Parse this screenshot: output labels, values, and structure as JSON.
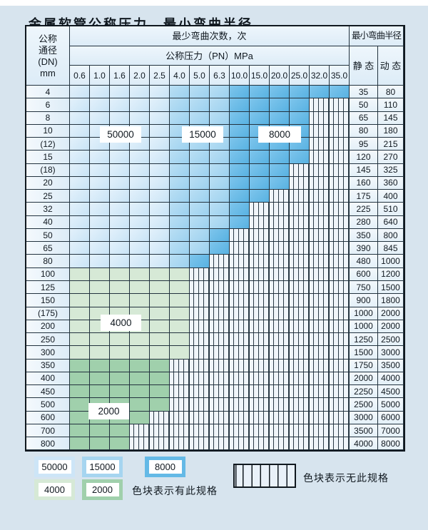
{
  "title": "金属软管公称压力、最小弯曲半径",
  "table": {
    "dn_header_lines": [
      "公称",
      "通径",
      "(DN)",
      "mm"
    ],
    "cycles_header": "最少弯曲次数，次",
    "pressure_header": "公称压力（PN）MPa",
    "pressure_columns": [
      "0.6",
      "1.0",
      "1.6",
      "2.0",
      "2.5",
      "4.0",
      "5.0",
      "6.3",
      "10.0",
      "15.0",
      "20.0",
      "25.0",
      "32.0",
      "35.0"
    ],
    "radius_header": "最小弯曲半径",
    "static_header": "静 态",
    "dynamic_header": "动 态",
    "cell_legend": {
      "b1": "50000次",
      "b2": "15000次",
      "b3": "8000次",
      "g1": "4000次",
      "g2": "2000次",
      "x": "无此规格"
    },
    "rows": [
      {
        "dn": "4",
        "cells": [
          "b1",
          "b1",
          "b1",
          "b1",
          "b1",
          "b2",
          "b2",
          "b2",
          "b3",
          "b3",
          "b3",
          "b3",
          "b3",
          "b3"
        ],
        "static": "35",
        "dynamic": "80"
      },
      {
        "dn": "6",
        "cells": [
          "b1",
          "b1",
          "b1",
          "b1",
          "b1",
          "b2",
          "b2",
          "b2",
          "b3",
          "b3",
          "b3",
          "b3",
          "x",
          "x"
        ],
        "static": "50",
        "dynamic": "110"
      },
      {
        "dn": "8",
        "cells": [
          "b1",
          "b1",
          "b1",
          "b1",
          "b1",
          "b2",
          "b2",
          "b2",
          "b3",
          "b3",
          "b3",
          "b3",
          "x",
          "x"
        ],
        "static": "65",
        "dynamic": "145"
      },
      {
        "dn": "10",
        "cells": [
          "b1",
          "b1",
          "b1",
          "b1",
          "b1",
          "b2",
          "b2",
          "b2",
          "b3",
          "b3",
          "b3",
          "b3",
          "x",
          "x"
        ],
        "static": "80",
        "dynamic": "180"
      },
      {
        "dn": "(12)",
        "cells": [
          "b1",
          "b1",
          "b1",
          "b1",
          "b1",
          "b2",
          "b2",
          "b2",
          "b3",
          "b3",
          "b3",
          "b3",
          "x",
          "x"
        ],
        "static": "95",
        "dynamic": "215"
      },
      {
        "dn": "15",
        "cells": [
          "b1",
          "b1",
          "b1",
          "b1",
          "b1",
          "b2",
          "b2",
          "b2",
          "b3",
          "b3",
          "b3",
          "b3",
          "x",
          "x"
        ],
        "static": "120",
        "dynamic": "270"
      },
      {
        "dn": "(18)",
        "cells": [
          "b1",
          "b1",
          "b1",
          "b1",
          "b1",
          "b2",
          "b2",
          "b2",
          "b3",
          "b3",
          "b3",
          "x",
          "x",
          "x"
        ],
        "static": "145",
        "dynamic": "325"
      },
      {
        "dn": "20",
        "cells": [
          "b1",
          "b1",
          "b1",
          "b1",
          "b1",
          "b2",
          "b2",
          "b2",
          "b3",
          "b3",
          "b3",
          "x",
          "x",
          "x"
        ],
        "static": "160",
        "dynamic": "360"
      },
      {
        "dn": "25",
        "cells": [
          "b1",
          "b1",
          "b1",
          "b1",
          "b1",
          "b2",
          "b2",
          "b2",
          "b3",
          "b3",
          "x",
          "x",
          "x",
          "x"
        ],
        "static": "175",
        "dynamic": "400"
      },
      {
        "dn": "32",
        "cells": [
          "b1",
          "b1",
          "b1",
          "b1",
          "b1",
          "b2",
          "b2",
          "b2",
          "b3",
          "x",
          "x",
          "x",
          "x",
          "x"
        ],
        "static": "225",
        "dynamic": "510"
      },
      {
        "dn": "40",
        "cells": [
          "b1",
          "b1",
          "b1",
          "b1",
          "b1",
          "b2",
          "b2",
          "b2",
          "b3",
          "x",
          "x",
          "x",
          "x",
          "x"
        ],
        "static": "280",
        "dynamic": "640"
      },
      {
        "dn": "50",
        "cells": [
          "b1",
          "b1",
          "b1",
          "b1",
          "b1",
          "b2",
          "b2",
          "b3",
          "x",
          "x",
          "x",
          "x",
          "x",
          "x"
        ],
        "static": "350",
        "dynamic": "800"
      },
      {
        "dn": "65",
        "cells": [
          "b1",
          "b1",
          "b1",
          "b1",
          "b1",
          "b2",
          "b2",
          "b3",
          "x",
          "x",
          "x",
          "x",
          "x",
          "x"
        ],
        "static": "390",
        "dynamic": "845"
      },
      {
        "dn": "80",
        "cells": [
          "b1",
          "b1",
          "b1",
          "b1",
          "b1",
          "b2",
          "b3",
          "x",
          "x",
          "x",
          "x",
          "x",
          "x",
          "x"
        ],
        "static": "480",
        "dynamic": "1000"
      },
      {
        "dn": "100",
        "cells": [
          "g1",
          "g1",
          "g1",
          "g1",
          "g1",
          "g1",
          "x",
          "x",
          "x",
          "x",
          "x",
          "x",
          "x",
          "x"
        ],
        "static": "600",
        "dynamic": "1200"
      },
      {
        "dn": "125",
        "cells": [
          "g1",
          "g1",
          "g1",
          "g1",
          "g1",
          "g1",
          "x",
          "x",
          "x",
          "x",
          "x",
          "x",
          "x",
          "x"
        ],
        "static": "750",
        "dynamic": "1500"
      },
      {
        "dn": "150",
        "cells": [
          "g1",
          "g1",
          "g1",
          "g1",
          "g1",
          "g1",
          "x",
          "x",
          "x",
          "x",
          "x",
          "x",
          "x",
          "x"
        ],
        "static": "900",
        "dynamic": "1800"
      },
      {
        "dn": "(175)",
        "cells": [
          "g1",
          "g1",
          "g1",
          "g1",
          "g1",
          "g1",
          "x",
          "x",
          "x",
          "x",
          "x",
          "x",
          "x",
          "x"
        ],
        "static": "1000",
        "dynamic": "2000"
      },
      {
        "dn": "200",
        "cells": [
          "g1",
          "g1",
          "g1",
          "g1",
          "g1",
          "g1",
          "x",
          "x",
          "x",
          "x",
          "x",
          "x",
          "x",
          "x"
        ],
        "static": "1000",
        "dynamic": "2000"
      },
      {
        "dn": "250",
        "cells": [
          "g1",
          "g1",
          "g1",
          "g1",
          "g1",
          "g1",
          "x",
          "x",
          "x",
          "x",
          "x",
          "x",
          "x",
          "x"
        ],
        "static": "1250",
        "dynamic": "2500"
      },
      {
        "dn": "300",
        "cells": [
          "g1",
          "g1",
          "g1",
          "g1",
          "g1",
          "g1",
          "x",
          "x",
          "x",
          "x",
          "x",
          "x",
          "x",
          "x"
        ],
        "static": "1500",
        "dynamic": "3000"
      },
      {
        "dn": "350",
        "cells": [
          "g2",
          "g2",
          "g2",
          "g2",
          "g2",
          "x",
          "x",
          "x",
          "x",
          "x",
          "x",
          "x",
          "x",
          "x"
        ],
        "static": "1750",
        "dynamic": "3500"
      },
      {
        "dn": "400",
        "cells": [
          "g2",
          "g2",
          "g2",
          "g2",
          "g2",
          "x",
          "x",
          "x",
          "x",
          "x",
          "x",
          "x",
          "x",
          "x"
        ],
        "static": "2000",
        "dynamic": "4000"
      },
      {
        "dn": "450",
        "cells": [
          "g2",
          "g2",
          "g2",
          "g2",
          "g2",
          "x",
          "x",
          "x",
          "x",
          "x",
          "x",
          "x",
          "x",
          "x"
        ],
        "static": "2250",
        "dynamic": "4500"
      },
      {
        "dn": "500",
        "cells": [
          "g2",
          "g2",
          "g2",
          "g2",
          "g2",
          "x",
          "x",
          "x",
          "x",
          "x",
          "x",
          "x",
          "x",
          "x"
        ],
        "static": "2500",
        "dynamic": "5000"
      },
      {
        "dn": "600",
        "cells": [
          "g2",
          "g2",
          "g2",
          "g2",
          "x",
          "x",
          "x",
          "x",
          "x",
          "x",
          "x",
          "x",
          "x",
          "x"
        ],
        "static": "3000",
        "dynamic": "6000"
      },
      {
        "dn": "700",
        "cells": [
          "g2",
          "g2",
          "g2",
          "x",
          "x",
          "x",
          "x",
          "x",
          "x",
          "x",
          "x",
          "x",
          "x",
          "x"
        ],
        "static": "3500",
        "dynamic": "7000"
      },
      {
        "dn": "800",
        "cells": [
          "g2",
          "g2",
          "g2",
          "x",
          "x",
          "x",
          "x",
          "x",
          "x",
          "x",
          "x",
          "x",
          "x",
          "x"
        ],
        "static": "4000",
        "dynamic": "8000"
      }
    ]
  },
  "region_labels": {
    "l1": "50000",
    "l2": "15000",
    "l3": "8000",
    "l4": "4000",
    "l5": "2000"
  },
  "legend": {
    "items": [
      {
        "label": "50000",
        "shade": "b1"
      },
      {
        "label": "15000",
        "shade": "b2"
      },
      {
        "label": "8000",
        "shade": "b3"
      },
      {
        "label": "4000",
        "shade": "g1"
      },
      {
        "label": "2000",
        "shade": "g2"
      }
    ],
    "has_spec_text": "色块表示有此规格",
    "no_spec_text": "色块表示无此规格"
  },
  "colors": {
    "b1": "#cde5f7",
    "b2": "#a6d5f0",
    "b3": "#64b9e6",
    "g1": "#d6e9d6",
    "g2": "#a0d0ac"
  }
}
